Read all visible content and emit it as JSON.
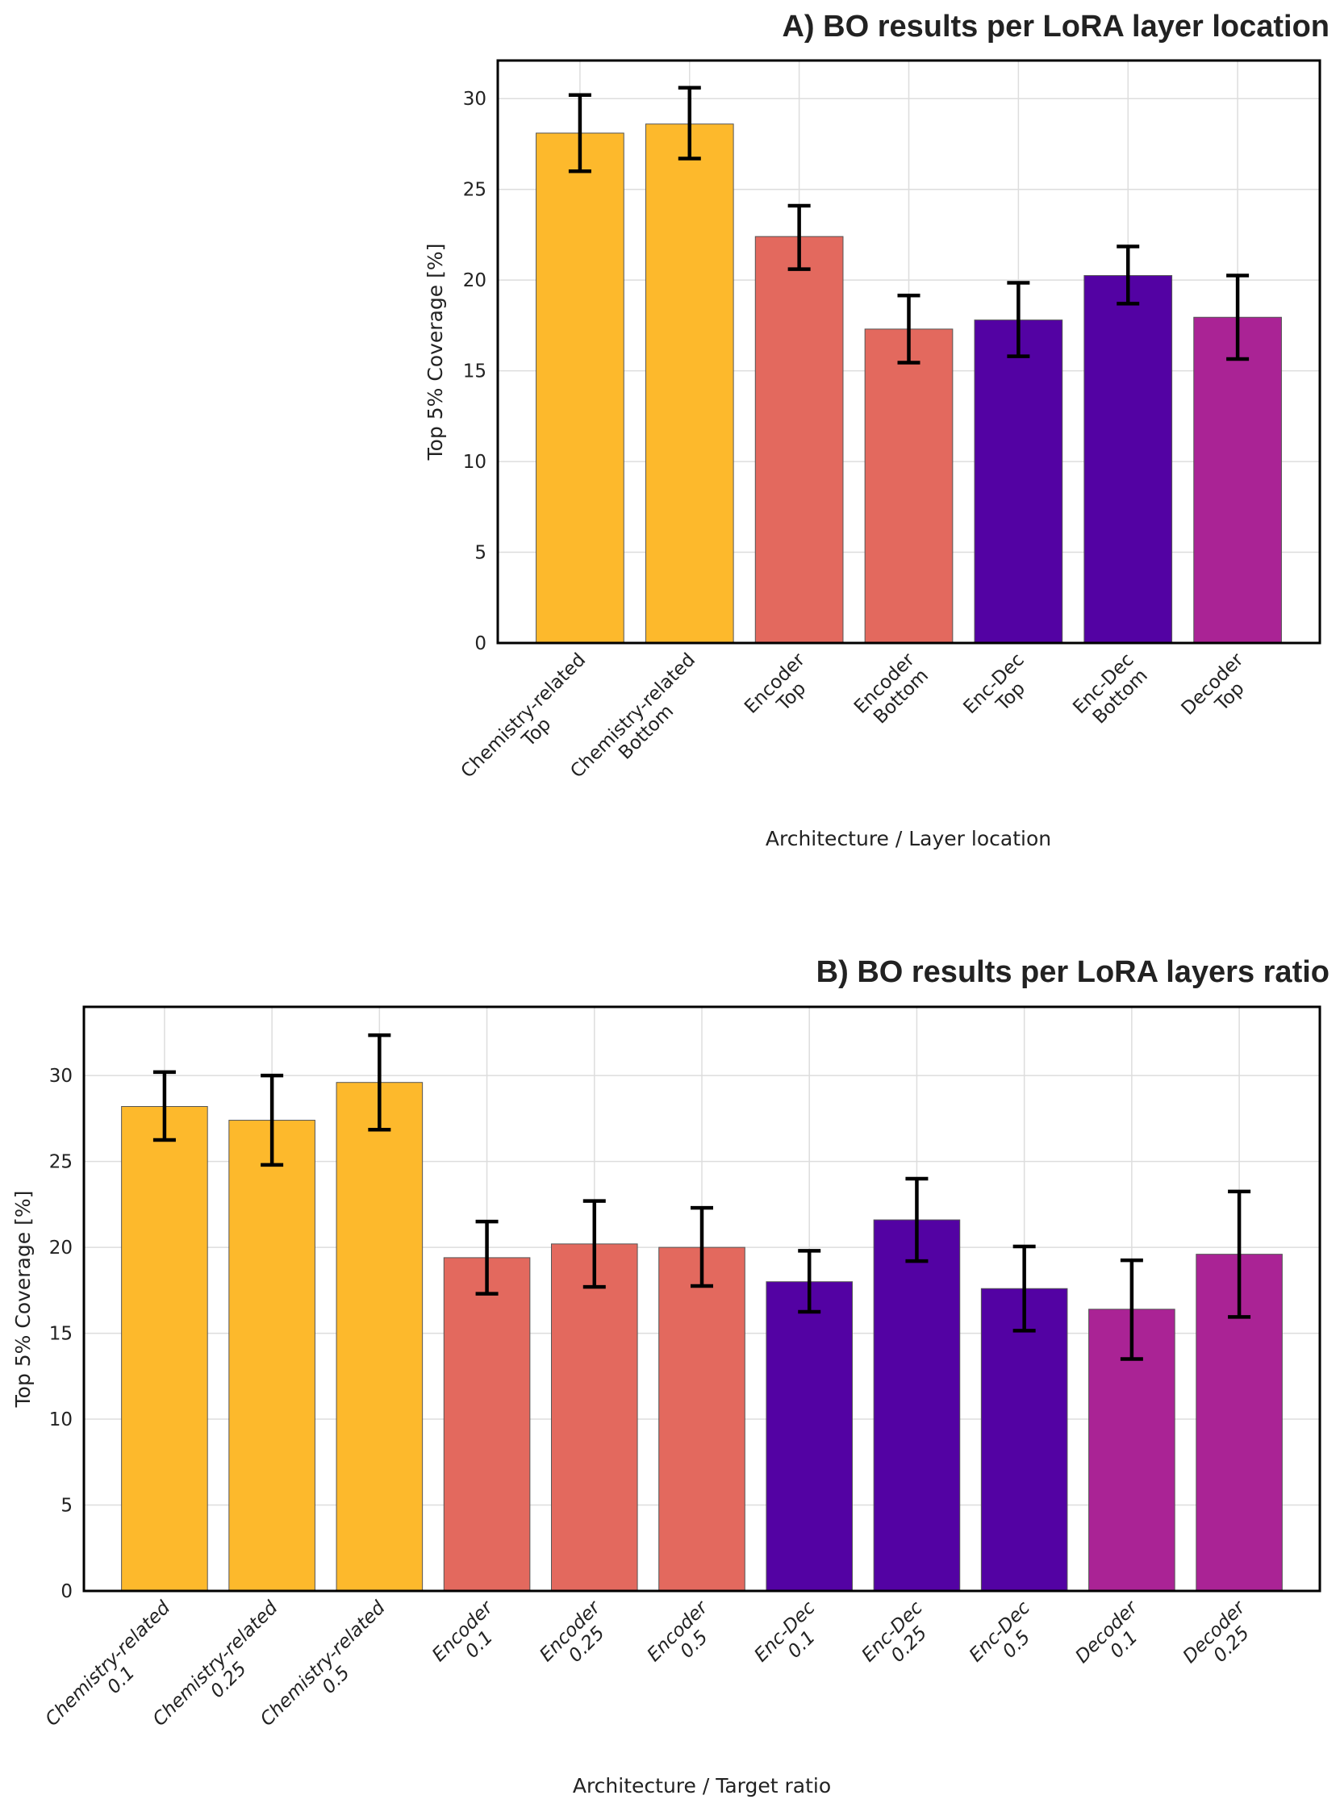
{
  "chart_data": [
    {
      "type": "bar",
      "title": "A) BO results per LoRA layer location",
      "xlabel": "Architecture / Layer location",
      "ylabel": "Top 5% Coverage [%]",
      "ylim": [
        0,
        32.1
      ],
      "yticks": [
        0,
        5,
        10,
        15,
        20,
        25,
        30
      ],
      "grid": true,
      "xtick_style": "normal",
      "categories": [
        [
          "Chemistry-related",
          "Top"
        ],
        [
          "Chemistry-related",
          "Bottom"
        ],
        [
          "Encoder",
          "Top"
        ],
        [
          "Encoder",
          "Bottom"
        ],
        [
          "Enc-Dec",
          "Top"
        ],
        [
          "Enc-Dec",
          "Bottom"
        ],
        [
          "Decoder",
          "Top"
        ]
      ],
      "values": [
        28.1,
        28.6,
        22.4,
        17.3,
        17.8,
        20.25,
        17.95
      ],
      "error_low": [
        26.0,
        26.7,
        20.6,
        15.45,
        15.8,
        18.7,
        15.65
      ],
      "error_high": [
        30.2,
        30.6,
        24.1,
        19.15,
        19.85,
        21.85,
        20.25
      ],
      "colors": [
        "#fdb92c",
        "#fdb92c",
        "#e3695e",
        "#e3695e",
        "#5302a3",
        "#5302a3",
        "#aa2395"
      ]
    },
    {
      "type": "bar",
      "title": "B) BO results per LoRA layers ratio",
      "xlabel": "Architecture / Target ratio",
      "ylabel": "Top 5% Coverage [%]",
      "ylim": [
        0,
        34.0
      ],
      "yticks": [
        0,
        5,
        10,
        15,
        20,
        25,
        30
      ],
      "grid": true,
      "xtick_style": "italic",
      "categories": [
        [
          "Chemistry-related",
          "0.1"
        ],
        [
          "Chemistry-related",
          "0.25"
        ],
        [
          "Chemistry-related",
          "0.5"
        ],
        [
          "Encoder",
          "0.1"
        ],
        [
          "Encoder",
          "0.25"
        ],
        [
          "Encoder",
          "0.5"
        ],
        [
          "Enc-Dec",
          "0.1"
        ],
        [
          "Enc-Dec",
          "0.25"
        ],
        [
          "Enc-Dec",
          "0.5"
        ],
        [
          "Decoder",
          "0.1"
        ],
        [
          "Decoder",
          "0.25"
        ]
      ],
      "values": [
        28.2,
        27.4,
        29.6,
        19.4,
        20.2,
        20.0,
        18.0,
        21.6,
        17.6,
        16.4,
        19.6
      ],
      "error_low": [
        26.25,
        24.8,
        26.85,
        17.3,
        17.7,
        17.75,
        16.25,
        19.2,
        15.15,
        13.5,
        15.95
      ],
      "error_high": [
        30.2,
        30.0,
        32.35,
        21.5,
        22.7,
        22.3,
        19.8,
        24.0,
        20.05,
        19.25,
        23.25
      ],
      "colors": [
        "#fdb92c",
        "#fdb92c",
        "#fdb92c",
        "#e3695e",
        "#e3695e",
        "#e3695e",
        "#5302a3",
        "#5302a3",
        "#5302a3",
        "#aa2395",
        "#aa2395"
      ]
    }
  ]
}
